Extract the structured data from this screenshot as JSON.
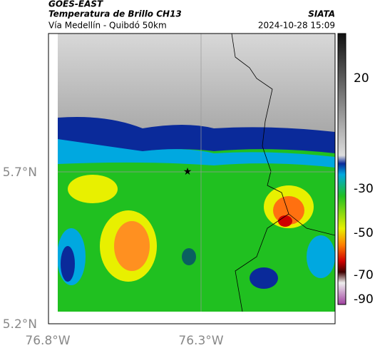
{
  "header": {
    "title": "GOES-EAST",
    "subtitle": "Temperatura de Brillo CH13",
    "source": "SIATA",
    "region": "Vía Medellín - Quibdó 50km",
    "datetime": "2024-10-28 15:09"
  },
  "axes": {
    "y_labels": [
      "5.7°N",
      "5.2°N"
    ],
    "x_labels": [
      "76.8°W",
      "76.3°W"
    ]
  },
  "colorbar": {
    "labels": [
      "20",
      "-30",
      "-50",
      "-70",
      "-90"
    ]
  }
}
